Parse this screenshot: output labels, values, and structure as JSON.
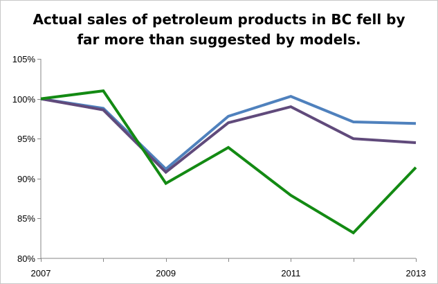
{
  "chart_data": {
    "type": "line",
    "title": [
      "Actual sales of petroleum products in BC fell by",
      "far more than suggested by models."
    ],
    "x": [
      2007,
      2008,
      2009,
      2010,
      2011,
      2012,
      2013
    ],
    "x_tick_labels": [
      "2007",
      "2009",
      "2011",
      "2013"
    ],
    "x_tick_values": [
      2007,
      2009,
      2011,
      2013
    ],
    "y_tick_labels": [
      "80%",
      "85%",
      "90%",
      "95%",
      "100%",
      "105%"
    ],
    "y_tick_values": [
      80,
      85,
      90,
      95,
      100,
      105
    ],
    "ylim": [
      80,
      105
    ],
    "xlim": [
      2007,
      2013
    ],
    "xlabel": "",
    "ylabel": "",
    "grid": false,
    "legend": false,
    "series": [
      {
        "values": [
          100.0,
          98.8,
          91.2,
          97.8,
          100.3,
          97.1,
          96.9
        ],
        "color": "#4f81bd"
      },
      {
        "values": [
          100.0,
          98.6,
          90.8,
          97.0,
          99.0,
          95.0,
          94.5
        ],
        "color": "#604a7b"
      },
      {
        "values": [
          100.0,
          101.0,
          89.4,
          93.9,
          87.9,
          83.2,
          91.4
        ],
        "color": "#138a13"
      }
    ]
  }
}
